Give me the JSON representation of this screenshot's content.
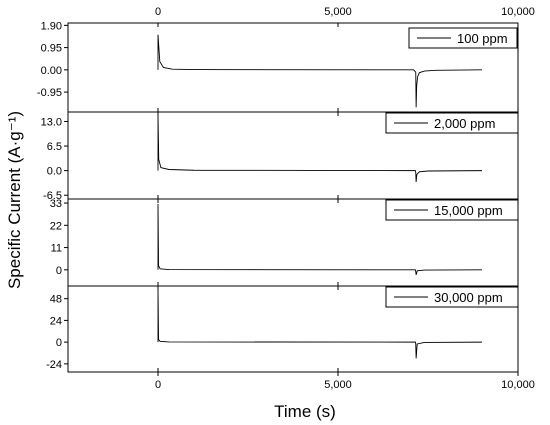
{
  "chart_data": {
    "type": "line",
    "xlabel": "Time (s)",
    "ylabel": "Specific Current (A·g⁻¹)",
    "xlim": [
      -2500,
      10000
    ],
    "x_ticks": [
      0,
      5000,
      10000
    ],
    "x_tick_labels": [
      "0",
      "5,000",
      "10,000"
    ],
    "shared_x": true,
    "grid": false,
    "panels": [
      {
        "series_name": "100 ppm",
        "legend_position": "top-right",
        "ylim": [
          -1.8,
          2.0
        ],
        "y_ticks": [
          1.9,
          0.95,
          0.0,
          -0.95
        ],
        "y_tick_labels": [
          "1.90",
          "0.95",
          "0.00",
          "-0.95"
        ],
        "x": [
          0,
          0,
          50,
          150,
          400,
          1000,
          7100,
          7160,
          7170,
          7185,
          7210,
          7260,
          7400,
          7700,
          9000
        ],
        "y": [
          0,
          1.5,
          0.35,
          0.1,
          0.03,
          0.01,
          0.0,
          -0.1,
          -1.6,
          -0.7,
          -0.3,
          -0.12,
          -0.05,
          -0.02,
          0.0
        ]
      },
      {
        "series_name": "2,000 ppm",
        "legend_position": "top-right",
        "ylim": [
          -7.5,
          15.5
        ],
        "y_ticks": [
          13.0,
          6.5,
          0.0,
          -6.5
        ],
        "y_tick_labels": [
          "13.0",
          "6.5",
          "0.0",
          "-6.5"
        ],
        "x": [
          0,
          0,
          20,
          80,
          300,
          1000,
          7150,
          7160,
          7170,
          7190,
          7260,
          7500,
          9000
        ],
        "y": [
          0,
          14.8,
          3.0,
          0.8,
          0.3,
          0.1,
          0.0,
          -0.5,
          -3.0,
          -1.0,
          -0.3,
          -0.1,
          0.0
        ],
        "note_exponent": "-1"
      },
      {
        "series_name": "15,000 ppm",
        "legend_position": "top-right",
        "ylim": [
          -8,
          35
        ],
        "y_ticks": [
          33,
          22,
          11,
          0
        ],
        "y_tick_labels": [
          "33",
          "22",
          "11",
          "0"
        ],
        "x": [
          0,
          0,
          15,
          60,
          300,
          7150,
          7160,
          7170,
          7200,
          7400,
          9000
        ],
        "y": [
          0,
          32.5,
          2.0,
          0.5,
          0.1,
          0.0,
          -1.0,
          -2.5,
          -0.5,
          -0.1,
          0.0
        ]
      },
      {
        "series_name": "30,000 ppm",
        "legend_position": "top-right",
        "ylim": [
          -33,
          62
        ],
        "y_ticks": [
          48,
          24,
          0,
          -24
        ],
        "y_tick_labels": [
          "48",
          "24",
          "0",
          "-24"
        ],
        "x": [
          0,
          0,
          15,
          60,
          300,
          7150,
          7160,
          7170,
          7200,
          7400,
          9000
        ],
        "y": [
          0,
          59,
          3.0,
          0.8,
          0.2,
          0.0,
          -2.0,
          -18.0,
          -2.0,
          -0.3,
          0.0
        ]
      }
    ]
  }
}
